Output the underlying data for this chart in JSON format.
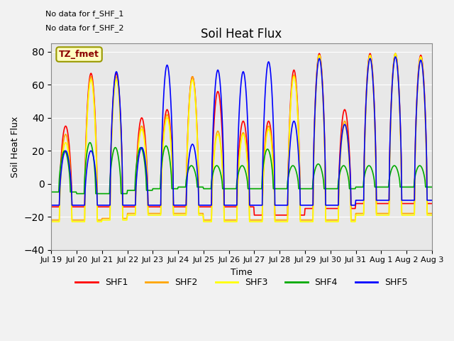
{
  "title": "Soil Heat Flux",
  "ylabel": "Soil Heat Flux",
  "xlabel": "Time",
  "ylim": [
    -40,
    85
  ],
  "background_color": "#e8e8e8",
  "fig_background": "#f2f2f2",
  "annotations": [
    "No data for f_SHF_1",
    "No data for f_SHF_2"
  ],
  "tz_label": "TZ_fmet",
  "legend_labels": [
    "SHF1",
    "SHF2",
    "SHF3",
    "SHF4",
    "SHF5"
  ],
  "legend_colors": [
    "#ff0000",
    "#ffa500",
    "#ffff00",
    "#00aa00",
    "#0000ff"
  ],
  "x_tick_labels": [
    "Jul 19",
    "Jul 20",
    "Jul 21",
    "Jul 22",
    "Jul 23",
    "Jul 24",
    "Jul 25",
    "Jul 26",
    "Jul 27",
    "Jul 28",
    "Jul 29",
    "Jul 30",
    "Jul 31",
    "Aug 1",
    "Aug 2",
    "Aug 3"
  ],
  "grid_color": "#ffffff",
  "line_width": 1.2,
  "n_days": 16
}
